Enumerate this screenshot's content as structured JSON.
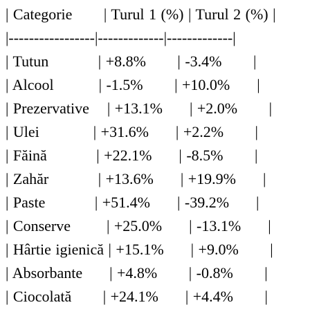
{
  "lines": [
    "| Categorie       | Turul 1 (%) | Turul 2 (%) |",
    "|-----------------|-------------|-------------|",
    "| Tutun           | +8.8%       | -3.4%       |",
    "| Alcool          | -1.5%       | +10.0%      |",
    "| Prezervative    | +13.1%      | +2.0%       |",
    "| Ulei            | +31.6%      | +2.2%       |",
    "| Făină           | +22.1%      | -8.5%       |",
    "| Zahăr           | +13.6%      | +19.9%      |",
    "| Paste           | +51.4%      | -39.2%      |",
    "| Conserve        | +25.0%      | -13.1%      |",
    "| Hârtie igienică | +15.1%      | +9.0%       |",
    "| Absorbante      | +4.8%       | -0.8%       |",
    "| Ciocolată       | +24.1%      | +4.4%       |"
  ]
}
